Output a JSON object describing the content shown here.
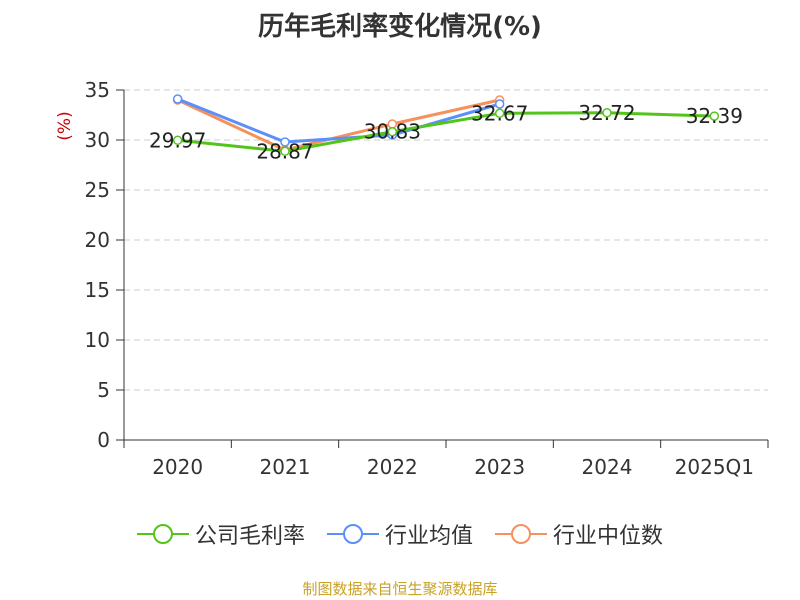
{
  "page": {
    "title": "历年毛利率变化情况(%)",
    "footer": "制图数据来自恒生聚源数据库"
  },
  "chart_data": {
    "type": "line",
    "title": "历年毛利率变化情况(%)",
    "ylabel": "(%)",
    "xlabel": "",
    "categories": [
      "2020",
      "2021",
      "2022",
      "2023",
      "2024",
      "2025Q1"
    ],
    "ylim": [
      0,
      35
    ],
    "yticks": [
      0,
      5,
      10,
      15,
      20,
      25,
      30,
      35
    ],
    "grid": true,
    "legend_position": "bottom",
    "series": [
      {
        "name": "公司毛利率",
        "color": "#52c41a",
        "values": [
          29.97,
          28.87,
          30.83,
          32.67,
          32.72,
          32.39
        ],
        "labels": [
          "29.97",
          "28.87",
          "30.83",
          "32.67",
          "32.72",
          "32.39"
        ]
      },
      {
        "name": "行业均值",
        "color": "#5b8ff9",
        "values": [
          34.1,
          29.8,
          30.5,
          33.6,
          null,
          null
        ]
      },
      {
        "name": "行业中位数",
        "color": "#f6915e",
        "values": [
          34.0,
          29.0,
          31.6,
          34.0,
          null,
          null
        ]
      }
    ]
  }
}
